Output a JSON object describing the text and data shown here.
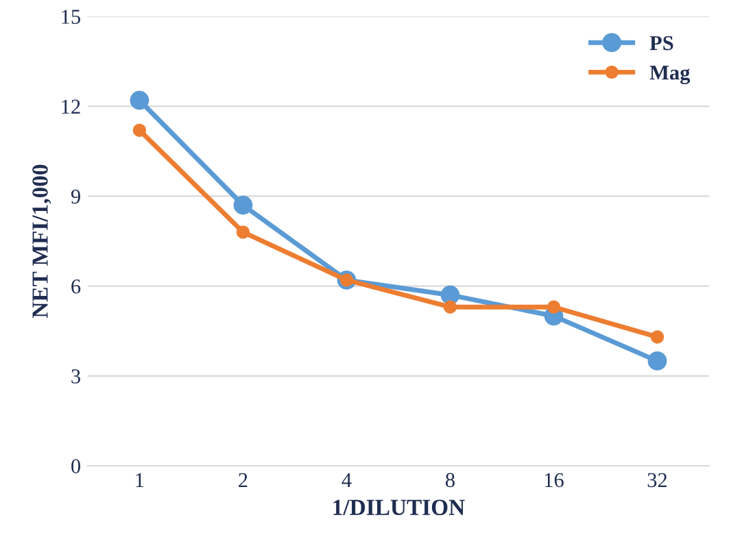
{
  "chart_data": {
    "type": "line",
    "xlabel": "1/DILUTION",
    "ylabel": "NET MFI/1,000",
    "categories": [
      "1",
      "2",
      "4",
      "8",
      "16",
      "32"
    ],
    "series": [
      {
        "name": "PS",
        "color": "#5b9bd5",
        "values": [
          12.2,
          8.7,
          6.2,
          5.7,
          5.0,
          3.5
        ]
      },
      {
        "name": "Mag",
        "color": "#ed7d31",
        "values": [
          11.2,
          7.8,
          6.2,
          5.3,
          5.3,
          4.3
        ]
      }
    ],
    "ylim": [
      0,
      15
    ],
    "yticks": [
      0,
      3,
      6,
      9,
      12,
      15
    ],
    "grid": "y",
    "legend": "top right",
    "marker": "circle",
    "line_style": "solid"
  }
}
